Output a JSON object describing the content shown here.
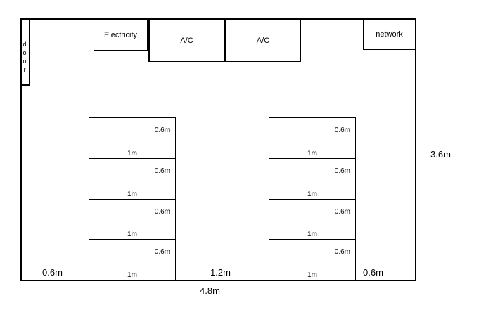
{
  "colors": {
    "line": "#000000",
    "background": "#ffffff"
  },
  "room": {
    "door": {
      "label": "door"
    },
    "equipment": [
      {
        "id": "electricity",
        "label": "Electricity"
      },
      {
        "id": "ac-1",
        "label": "A/C"
      },
      {
        "id": "ac-2",
        "label": "A/C"
      },
      {
        "id": "network",
        "label": "network"
      }
    ],
    "racks": {
      "left": {
        "rows": [
          {
            "depth": "0.6m",
            "width": "1m"
          },
          {
            "depth": "0.6m",
            "width": "1m"
          },
          {
            "depth": "0.6m",
            "width": "1m"
          },
          {
            "depth": "0.6m",
            "width": "1m"
          }
        ]
      },
      "right": {
        "rows": [
          {
            "depth": "0.6m",
            "width": "1m"
          },
          {
            "depth": "0.6m",
            "width": "1m"
          },
          {
            "depth": "0.6m",
            "width": "1m"
          },
          {
            "depth": "0.6m",
            "width": "1m"
          }
        ]
      }
    }
  },
  "dimensions": {
    "room_depth": "3.6m",
    "room_width": "4.8m",
    "left_clearance": "0.6m",
    "center_aisle": "1.2m",
    "right_clearance": "0.6m"
  }
}
